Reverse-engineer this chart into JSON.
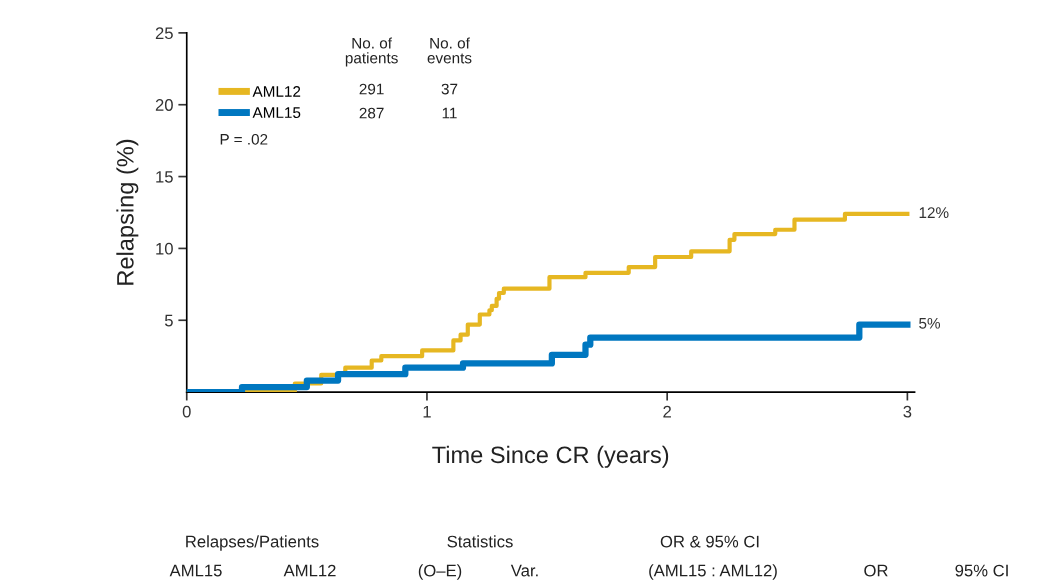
{
  "chart_data": {
    "type": "step",
    "xlabel": "Time Since CR (years)",
    "ylabel": "Relapsing (%)",
    "xlim": [
      0,
      3.03
    ],
    "ylim": [
      0,
      25
    ],
    "xticks": [
      0,
      1,
      2,
      3
    ],
    "yticks": [
      5,
      10,
      15,
      20,
      25
    ],
    "grid": false,
    "legend": "top left",
    "series": [
      {
        "name": "AML12",
        "color": "#e6b722",
        "x": [
          0,
          0.45,
          0.56,
          0.66,
          0.77,
          0.81,
          0.98,
          1.11,
          1.14,
          1.17,
          1.22,
          1.26,
          1.27,
          1.29,
          1.3,
          1.32,
          1.51,
          1.66,
          1.84,
          1.95,
          2.1,
          2.26,
          2.28,
          2.45,
          2.53,
          2.74,
          3.0
        ],
        "values": [
          0,
          0.6,
          1.2,
          1.7,
          2.2,
          2.5,
          2.9,
          3.6,
          4.0,
          4.7,
          5.4,
          5.7,
          6.0,
          6.5,
          6.9,
          7.2,
          8.0,
          8.3,
          8.7,
          9.4,
          9.8,
          10.6,
          11.0,
          11.3,
          12.0,
          12.4,
          12.4
        ]
      },
      {
        "name": "AML15",
        "color": "#0077c0",
        "x": [
          0,
          0.23,
          0.5,
          0.63,
          0.91,
          1.15,
          1.52,
          1.66,
          1.68,
          2.8,
          3.0
        ],
        "values": [
          0,
          0.35,
          0.8,
          1.25,
          1.7,
          2.0,
          2.6,
          3.3,
          3.8,
          4.7,
          4.7
        ]
      }
    ],
    "annotations": [
      {
        "text": "12%",
        "x": 3.0,
        "y": 12.4
      },
      {
        "text": "5%",
        "x": 3.0,
        "y": 4.7
      },
      "No. of\npatients",
      "No. of\nevents",
      "291",
      "37",
      "287",
      "11",
      "P = .02",
      "Relapses/Patients",
      "Statistics",
      "OR & 95% CI",
      "AML15",
      "AML12",
      "(O–E)",
      "Var.",
      "(AML15 : AML12)",
      "OR",
      "95% CI"
    ]
  }
}
